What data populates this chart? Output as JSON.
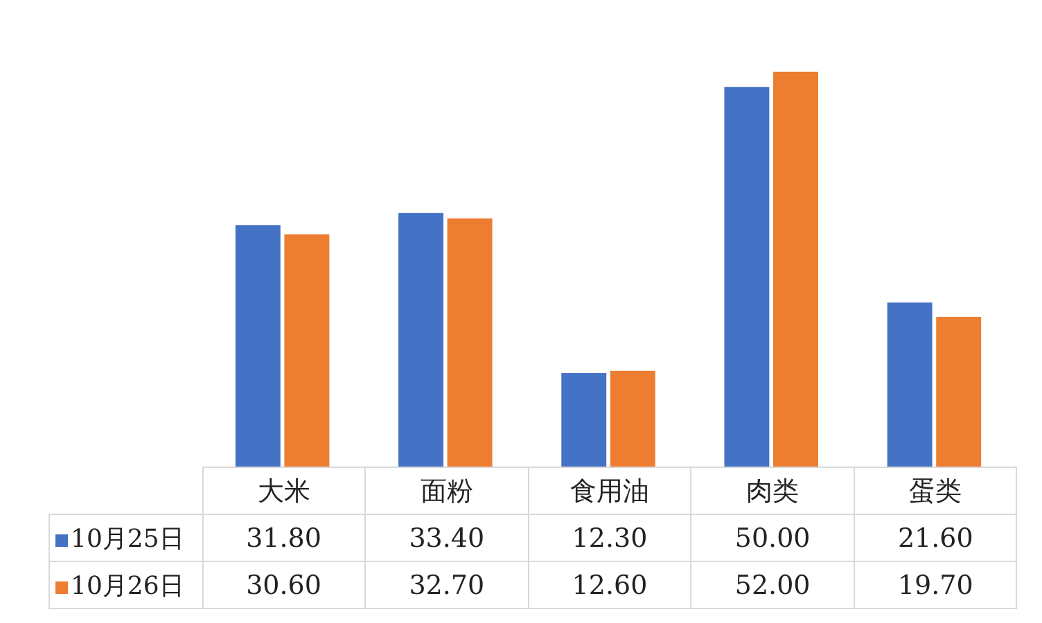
{
  "chart_data": {
    "type": "bar",
    "categories": [
      "大米",
      "面粉",
      "食用油",
      "肉类",
      "蛋类"
    ],
    "series": [
      {
        "name": "10月25日",
        "color": "#4472c4",
        "values": [
          31.8,
          33.4,
          12.3,
          50.0,
          21.6
        ],
        "value_labels": [
          "31.80",
          "33.40",
          "12.30",
          "50.00",
          "21.60"
        ]
      },
      {
        "name": "10月26日",
        "color": "#ed7d31",
        "values": [
          30.6,
          32.7,
          12.6,
          52.0,
          19.7
        ],
        "value_labels": [
          "30.60",
          "32.70",
          "12.60",
          "52.00",
          "19.70"
        ]
      }
    ],
    "legend": "bottom"
  }
}
